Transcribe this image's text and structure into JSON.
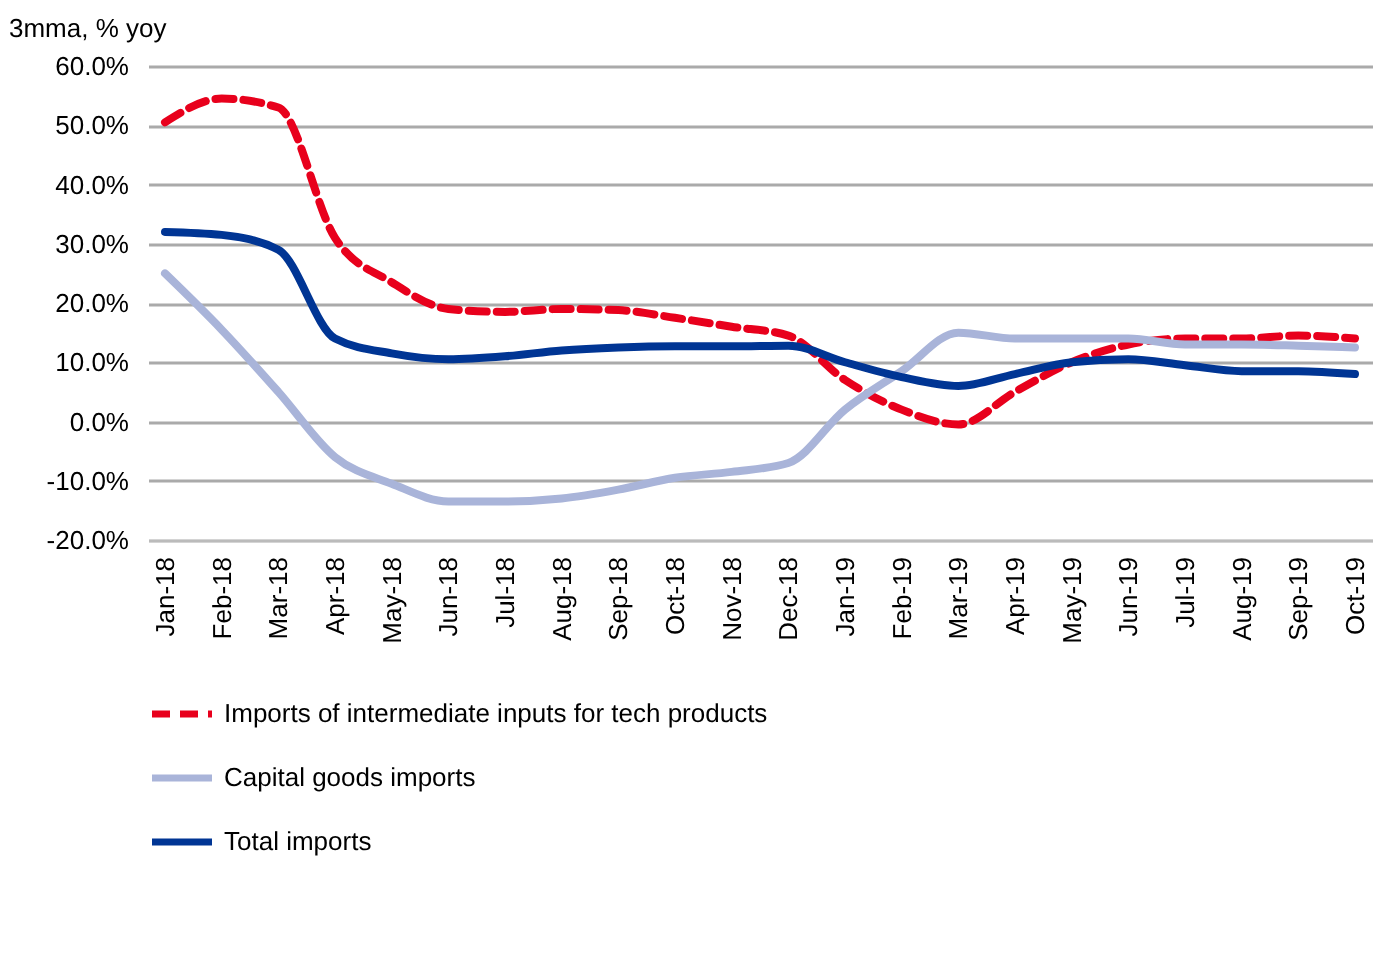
{
  "chart_data": {
    "type": "line",
    "ylabel": "3mma,  % yoy",
    "categories": [
      "Jan-18",
      "Feb-18",
      "Mar-18",
      "Apr-18",
      "May-18",
      "Jun-18",
      "Jul-18",
      "Aug-18",
      "Sep-18",
      "Oct-18",
      "Nov-18",
      "Dec-18",
      "Jan-19",
      "Feb-19",
      "Mar-19",
      "Apr-19",
      "May-19",
      "Jun-19",
      "Jul-19",
      "Aug-19",
      "Sep-19",
      "Oct-19"
    ],
    "series": [
      {
        "name": "Imports of intermediate inputs for tech products",
        "color": "#e8001c",
        "line_style": "dashed",
        "values": [
          50.5,
          54.5,
          53,
          31,
          23.5,
          19,
          18.5,
          19,
          18.8,
          17.5,
          16,
          14.5,
          7,
          2,
          -0.5,
          5,
          10,
          13,
          14,
          14,
          14.5,
          14
        ]
      },
      {
        "name": "Capital goods imports",
        "color": "#a9b4d9",
        "line_style": "solid",
        "values": [
          25,
          15.5,
          5,
          -6,
          -10.5,
          -13.5,
          -13.5,
          -13,
          -11.5,
          -9.5,
          -8.5,
          -7,
          2,
          8.5,
          15,
          14,
          14,
          14,
          13,
          13,
          12.8,
          12.5
        ]
      },
      {
        "name": "Total imports",
        "color": "#003594",
        "line_style": "solid",
        "values": [
          32,
          31.5,
          29,
          14,
          11.5,
          10.5,
          11,
          12,
          12.5,
          12.7,
          12.7,
          12.8,
          10,
          7.5,
          6,
          8,
          10,
          10.5,
          9.5,
          8.5,
          8.5,
          8
        ]
      }
    ],
    "ylim": [
      -20,
      60
    ],
    "yticks": [
      {
        "value": -20,
        "label": "-20.0%"
      },
      {
        "value": -10,
        "label": "-10.0%"
      },
      {
        "value": 0,
        "label": "0.0%"
      },
      {
        "value": 10,
        "label": "10.0%"
      },
      {
        "value": 20,
        "label": "20.0%"
      },
      {
        "value": 30,
        "label": "30.0%"
      },
      {
        "value": 40,
        "label": "40.0%"
      },
      {
        "value": 50,
        "label": "50.0%"
      },
      {
        "value": 60,
        "label": "60.0%"
      }
    ],
    "grid": "y",
    "legend": "bottom",
    "marker": "none"
  }
}
